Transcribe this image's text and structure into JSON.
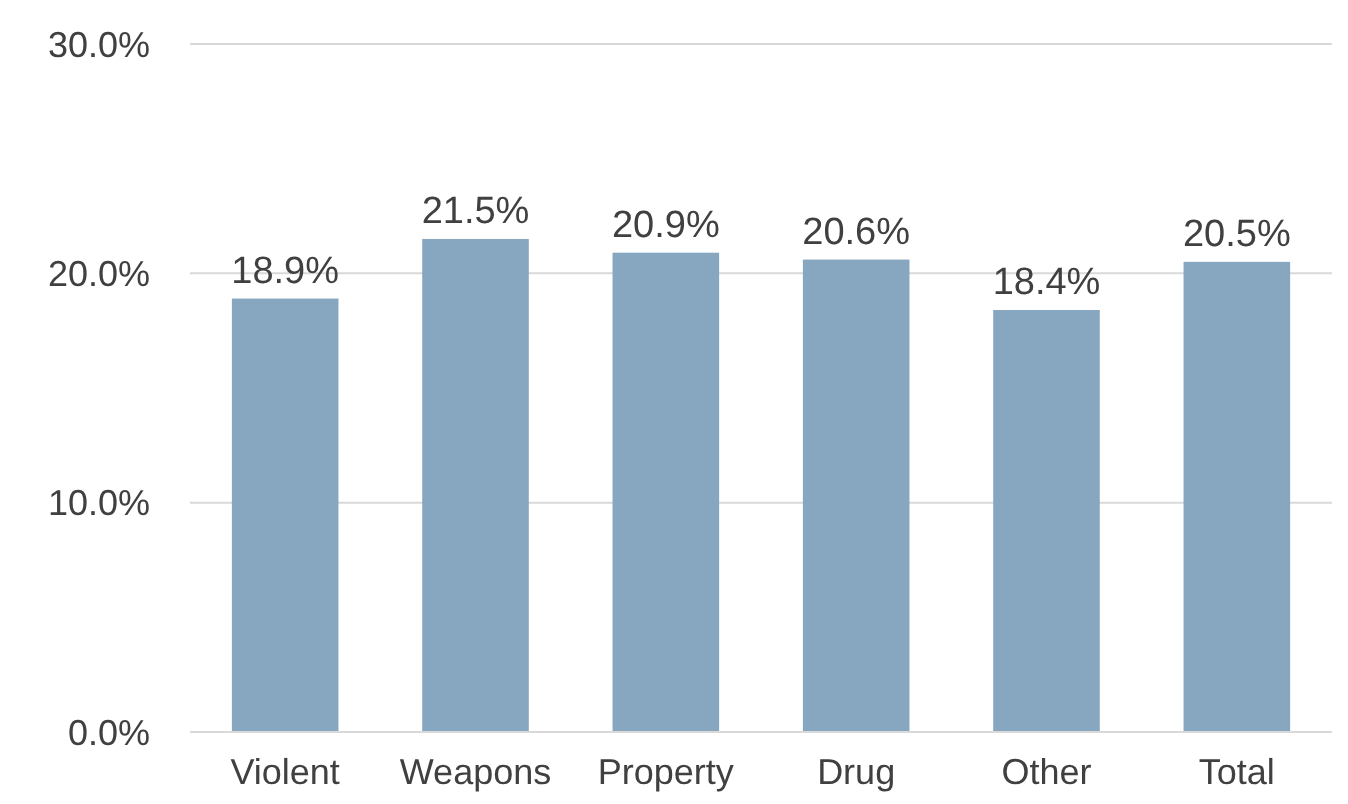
{
  "chart_data": {
    "type": "bar",
    "categories": [
      "Violent",
      "Weapons",
      "Property",
      "Drug",
      "Other",
      "Total"
    ],
    "values": [
      18.9,
      21.5,
      20.9,
      20.6,
      18.4,
      20.5
    ],
    "value_labels": [
      "18.9%",
      "21.5%",
      "20.9%",
      "20.6%",
      "18.4%",
      "20.5%"
    ],
    "color": "#87a7c1",
    "ylim": [
      0,
      30
    ],
    "yticks": [
      {
        "value": 0,
        "label": "0.0%"
      },
      {
        "value": 10,
        "label": "10.0%"
      },
      {
        "value": 20,
        "label": "20.0%"
      },
      {
        "value": 30,
        "label": "30.0%"
      }
    ],
    "grid": "y"
  }
}
